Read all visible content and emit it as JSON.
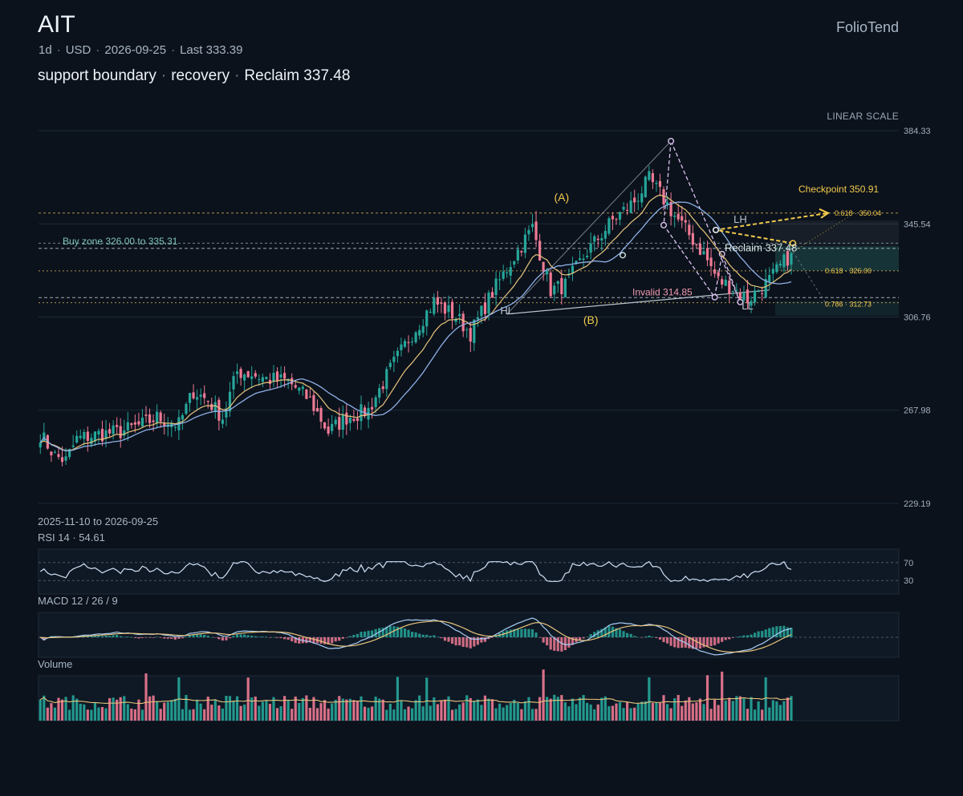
{
  "header": {
    "symbol": "AIT",
    "brand": "FolioTend",
    "interval": "1d",
    "currency": "USD",
    "date": "2026-09-25",
    "last_label": "Last 333.39",
    "subtitle_parts": [
      "support boundary",
      "recovery",
      "Reclaim 337.48"
    ],
    "scale_mode": "LINEAR SCALE"
  },
  "colors": {
    "background": "#0b121c",
    "up": "#26a69a",
    "down": "#ef7a94",
    "ema_fast": "#e8c47c",
    "sma_slow": "#8fb0e6",
    "accent": "#f2c94c",
    "pattern": "#dcc2ee",
    "support": "#3fa89a"
  },
  "chart_data": {
    "type": "candlestick",
    "range_label": "2025-11-10 to 2026-09-25",
    "y_ticks": [
      "384.33",
      "345.54",
      "306.76",
      "267.98",
      "229.19"
    ],
    "ylim": [
      229.19,
      384.33
    ],
    "bars_count": 236,
    "anchor_closes": [
      [
        0,
        258
      ],
      [
        4,
        249
      ],
      [
        7,
        247
      ],
      [
        10,
        256
      ],
      [
        16,
        258
      ],
      [
        22,
        259
      ],
      [
        28,
        262
      ],
      [
        32,
        265
      ],
      [
        38,
        262
      ],
      [
        42,
        276
      ],
      [
        46,
        272
      ],
      [
        50,
        265
      ],
      [
        54,
        284
      ],
      [
        58,
        283
      ],
      [
        62,
        281
      ],
      [
        68,
        280
      ],
      [
        74,
        272
      ],
      [
        79,
        259
      ],
      [
        84,
        265
      ],
      [
        90,
        268
      ],
      [
        96,
        285
      ],
      [
        102,
        300
      ],
      [
        108,
        313
      ],
      [
        114,
        307
      ],
      [
        118,
        300
      ],
      [
        124,
        317
      ],
      [
        130,
        332
      ],
      [
        135,
        344
      ],
      [
        140,
        318
      ],
      [
        144,
        320
      ],
      [
        150,
        334
      ],
      [
        157,
        347
      ],
      [
        163,
        355
      ],
      [
        167,
        364
      ],
      [
        170,
        358
      ],
      [
        174,
        349
      ],
      [
        178,
        341
      ],
      [
        182,
        333
      ],
      [
        186,
        322
      ],
      [
        190,
        319
      ],
      [
        194,
        314
      ],
      [
        197,
        318
      ],
      [
        200,
        322
      ],
      [
        206,
        333.39
      ]
    ],
    "last_bar_index": 206,
    "last_close": 333.39,
    "moving_averages": [
      "EMA fast",
      "SMA slow"
    ],
    "annotations": {
      "buy_zone_label": "Buy zone 326.00 to 335.31",
      "buy_zone_low": 326.0,
      "buy_zone_high": 335.31,
      "checkpoint_label": "Checkpoint 350.91",
      "checkpoint_value": 350.91,
      "reclaim_label": "Reclaim 337.48",
      "reclaim_value": 337.48,
      "invalid_label": "Invalid 314.85",
      "invalid_value": 314.85,
      "fib_levels": [
        {
          "label": "0.618 · 350.04",
          "value": 350.04
        },
        {
          "label": "0.618 · 326.00",
          "value": 326.0
        },
        {
          "label": "0.786 · 312.73",
          "value": 312.73
        }
      ],
      "wave_labels": [
        {
          "text": "(A)",
          "bar": 143,
          "price": 355
        },
        {
          "text": "(B)",
          "bar": 151,
          "price": 304
        },
        {
          "text": "HL",
          "bar": 128,
          "price": 308
        },
        {
          "text": "LH",
          "bar": 192,
          "price": 346
        },
        {
          "text": "LL",
          "bar": 194,
          "price": 310
        }
      ],
      "pivot_points": [
        {
          "bar": 173,
          "price": 380
        },
        {
          "bar": 171,
          "price": 345
        },
        {
          "bar": 187,
          "price": 333
        },
        {
          "bar": 185,
          "price": 315
        },
        {
          "bar": 192,
          "price": 313
        }
      ]
    }
  },
  "rsi": {
    "label": "RSI 14 · 54.61",
    "value": 54.61,
    "levels": [
      "70",
      "30"
    ]
  },
  "macd": {
    "label": "MACD 12 / 26 / 9"
  },
  "volume": {
    "label": "Volume"
  }
}
